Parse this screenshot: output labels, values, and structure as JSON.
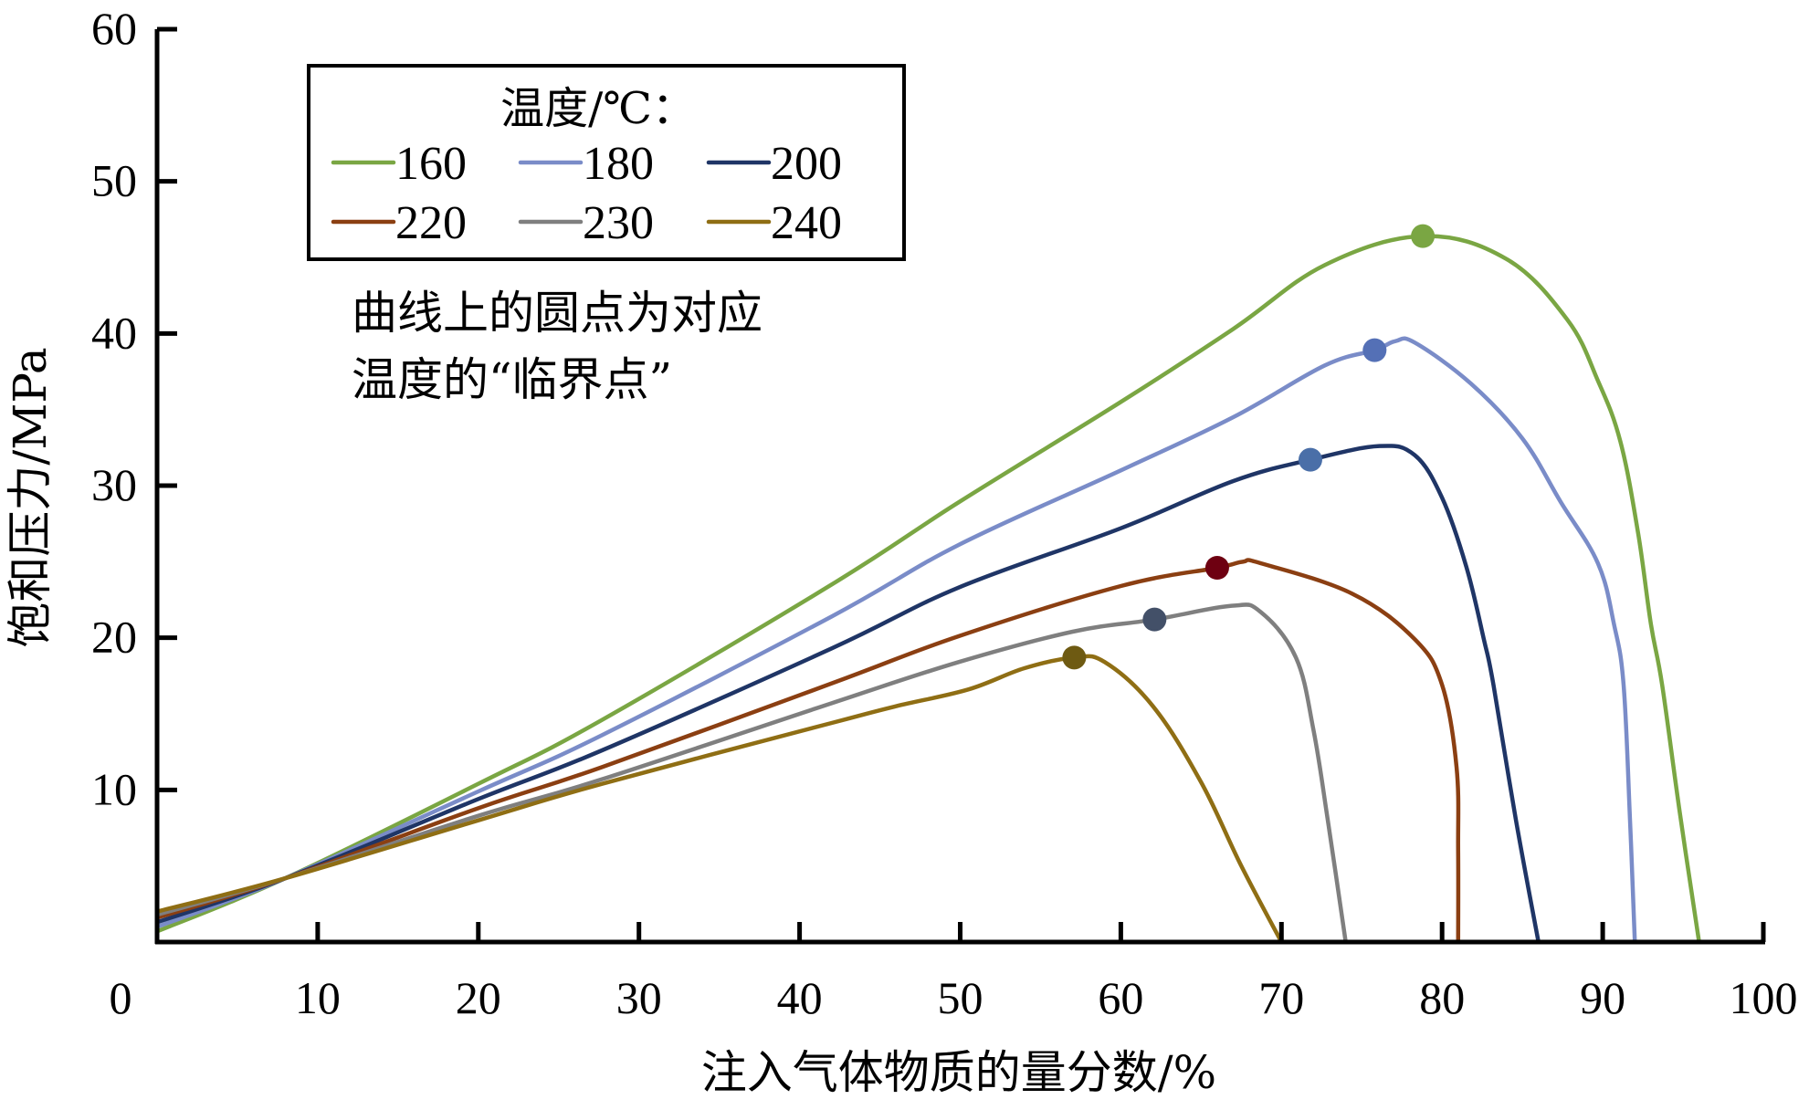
{
  "chart_data": {
    "type": "line",
    "title": "",
    "xlabel": "注入气体物质的量分数/%",
    "ylabel": "饱和压力/MPa",
    "xlim": [
      0,
      100
    ],
    "ylim": [
      0,
      60
    ],
    "x_ticks": [
      0,
      10,
      20,
      30,
      40,
      50,
      60,
      70,
      80,
      90,
      100
    ],
    "x_tick_labels": [
      "0",
      "10",
      "20",
      "30",
      "40",
      "50",
      "60",
      "70",
      "80",
      "90",
      "100"
    ],
    "y_ticks": [
      10,
      20,
      30,
      40,
      50,
      60
    ],
    "y_tick_labels": [
      "10",
      "20",
      "30",
      "40",
      "50",
      "60"
    ],
    "grid": false,
    "legend": {
      "title": "温度/℃：",
      "placement": "top-left",
      "columns": 3
    },
    "annotation": {
      "lines": [
        "曲线上的圆点为对应",
        "温度的“临界点”"
      ],
      "placement": "upper-left"
    },
    "series": [
      {
        "name": "160",
        "color": "#7aa643",
        "critical_point": {
          "x": 78.8,
          "y": 46.4,
          "color": "#7aa643"
        },
        "points": [
          [
            0,
            0.7
          ],
          [
            8,
            4.2
          ],
          [
            20,
            10.4
          ],
          [
            27.7,
            14.6
          ],
          [
            42,
            23.5
          ],
          [
            49.9,
            28.9
          ],
          [
            60,
            35.5
          ],
          [
            67,
            40.3
          ],
          [
            72.7,
            44.5
          ],
          [
            78.8,
            46.4
          ],
          [
            84,
            44.9
          ],
          [
            87.8,
            40.9
          ],
          [
            89.7,
            36.9
          ],
          [
            91.1,
            32.9
          ],
          [
            92.2,
            26.9
          ],
          [
            93,
            20.9
          ],
          [
            93.7,
            16.9
          ],
          [
            94.8,
            8.5
          ],
          [
            96,
            0
          ]
        ]
      },
      {
        "name": "180",
        "color": "#7a8cc8",
        "critical_point": {
          "x": 75.8,
          "y": 38.9,
          "color": "#5470b6"
        },
        "points": [
          [
            0,
            1.0
          ],
          [
            8,
            4.2
          ],
          [
            20,
            9.9
          ],
          [
            27.7,
            13.6
          ],
          [
            42,
            21.4
          ],
          [
            49.9,
            26.1
          ],
          [
            60,
            31.0
          ],
          [
            67,
            34.5
          ],
          [
            72.7,
            37.9
          ],
          [
            75.8,
            38.9
          ],
          [
            77.1,
            39.5
          ],
          [
            78.3,
            39.4
          ],
          [
            81.8,
            36.7
          ],
          [
            85,
            33.1
          ],
          [
            87.4,
            28.9
          ],
          [
            89.7,
            24.9
          ],
          [
            90.7,
            20.9
          ],
          [
            91.3,
            16.9
          ],
          [
            91.7,
            8
          ],
          [
            92,
            0
          ]
        ]
      },
      {
        "name": "200",
        "color": "#1f3566",
        "critical_point": {
          "x": 71.8,
          "y": 31.7,
          "color": "#4a6fa8"
        },
        "points": [
          [
            0,
            1.3
          ],
          [
            8,
            4.2
          ],
          [
            20,
            9.4
          ],
          [
            27.7,
            12.6
          ],
          [
            42,
            19.3
          ],
          [
            49.9,
            23.3
          ],
          [
            60,
            27.2
          ],
          [
            67,
            30.3
          ],
          [
            71.8,
            31.7
          ],
          [
            76.1,
            32.6
          ],
          [
            78.3,
            32.0
          ],
          [
            80,
            29.2
          ],
          [
            81.5,
            24.7
          ],
          [
            82.6,
            19.9
          ],
          [
            83.2,
            16.9
          ],
          [
            84.6,
            8
          ],
          [
            86,
            0
          ]
        ]
      },
      {
        "name": "220",
        "color": "#8b3f12",
        "critical_point": {
          "x": 66.0,
          "y": 24.6,
          "color": "#6e0011"
        },
        "points": [
          [
            0,
            1.6
          ],
          [
            8,
            4.2
          ],
          [
            20,
            8.8
          ],
          [
            27.7,
            11.5
          ],
          [
            42,
            17.0
          ],
          [
            49.9,
            20.1
          ],
          [
            60,
            23.4
          ],
          [
            66,
            24.6
          ],
          [
            67.6,
            25.0
          ],
          [
            68.7,
            24.9
          ],
          [
            74.4,
            22.9
          ],
          [
            78.3,
            19.9
          ],
          [
            80,
            16.9
          ],
          [
            80.9,
            11.5
          ],
          [
            81,
            6
          ],
          [
            81,
            0
          ]
        ]
      },
      {
        "name": "230",
        "color": "#7f7f7f",
        "critical_point": {
          "x": 62.1,
          "y": 21.2,
          "color": "#435068"
        },
        "points": [
          [
            0,
            1.8
          ],
          [
            8,
            4.2
          ],
          [
            20,
            8.3
          ],
          [
            27.7,
            10.7
          ],
          [
            42,
            15.7
          ],
          [
            49.9,
            18.4
          ],
          [
            57,
            20.4
          ],
          [
            62.1,
            21.2
          ],
          [
            66.9,
            22.1
          ],
          [
            68.7,
            21.7
          ],
          [
            70.9,
            18.7
          ],
          [
            72,
            13.9
          ],
          [
            72.9,
            7.9
          ],
          [
            74,
            0
          ]
        ]
      },
      {
        "name": "240",
        "color": "#8f6e14",
        "critical_point": {
          "x": 57.1,
          "y": 18.7,
          "color": "#6e5a12"
        },
        "points": [
          [
            0,
            2.0
          ],
          [
            8,
            4.2
          ],
          [
            20,
            8.0
          ],
          [
            27.7,
            10.4
          ],
          [
            42,
            14.4
          ],
          [
            46,
            15.5
          ],
          [
            50.5,
            16.6
          ],
          [
            54,
            18.0
          ],
          [
            57.1,
            18.7
          ],
          [
            59,
            18.4
          ],
          [
            62,
            15.5
          ],
          [
            65,
            10.5
          ],
          [
            67.5,
            5
          ],
          [
            70,
            0
          ]
        ]
      }
    ]
  }
}
